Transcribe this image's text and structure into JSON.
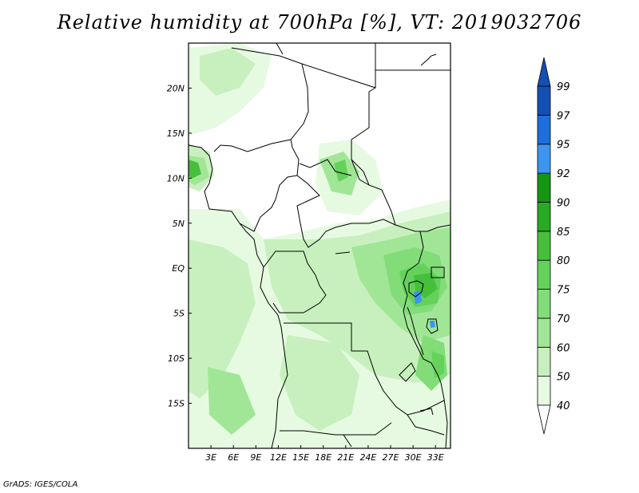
{
  "title": "Relative humidity at 700hPa [%], VT: 2019032706",
  "credit": "GrADS: IGES/COLA",
  "map": {
    "lon_range": [
      0,
      35
    ],
    "lat_range": [
      -20,
      25
    ],
    "lat_ticks": [
      "20N",
      "15N",
      "10N",
      "5N",
      "EQ",
      "5S",
      "10S",
      "15S"
    ],
    "lon_ticks": [
      "3E",
      "6E",
      "9E",
      "12E",
      "15E",
      "18E",
      "21E",
      "24E",
      "27E",
      "30E",
      "33E"
    ]
  },
  "colorbar": {
    "labels": [
      "40",
      "50",
      "60",
      "70",
      "75",
      "80",
      "85",
      "90",
      "92",
      "95",
      "97",
      "99"
    ],
    "colors": [
      "#ffffff",
      "#e6fae1",
      "#c8f0be",
      "#a0e696",
      "#82dc78",
      "#64d25a",
      "#46c03c",
      "#28aa23",
      "#149614",
      "#3c96f0",
      "#1e6edc",
      "#1450b4"
    ]
  }
}
